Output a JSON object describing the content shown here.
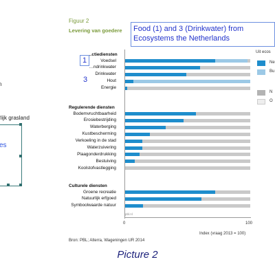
{
  "left_panel": {
    "text_top": "n",
    "text_grasland": "rlijk grasland",
    "text_blue": "es"
  },
  "figure": {
    "label": "Figuur 2",
    "title_start": "Levering van goedere",
    "annotation_text_line1": "Food (1) and 3 (Drinkwater) from",
    "annotation_text_line2": "Ecosystems the Netherlands",
    "marker_1": "1",
    "marker_3": "3",
    "legend_title": "Uit ecos",
    "legend_labels": [
      "Ne",
      "Bu",
      "N",
      "O"
    ],
    "legend_colors": [
      "#1e8dcc",
      "#9cc9e6",
      "#b3b3b3",
      "#eeeeee"
    ],
    "pbl_note": "pbl.nl",
    "axis_title": "Index (vraag 2013 = 100)",
    "tick_0": "0",
    "tick_100": "100",
    "source": "Bron: PBL; Alterra, Wageningen UR 2014",
    "caption": "Picture 2"
  },
  "chart_data": {
    "type": "bar",
    "title": "",
    "xlabel": "Index (vraag 2013 = 100)",
    "xlim": [
      0,
      100
    ],
    "groups": [
      {
        "name": "…ctiediensten",
        "rows": [
          {
            "label": "Voedsel",
            "value": 72,
            "light": 26
          },
          {
            "label": "…ndrinkwater",
            "value": 60,
            "light": 0
          },
          {
            "label": "Drinkwater",
            "value": 49,
            "light": 0
          },
          {
            "label": "Hout",
            "value": 7,
            "light": 93
          },
          {
            "label": "Energie",
            "value": 2,
            "light": 0
          }
        ]
      },
      {
        "name": "Regulerende diensten",
        "rows": [
          {
            "label": "Bodemvruchtbaarheid",
            "value": 57,
            "light": 0
          },
          {
            "label": "Erosiebestrijding",
            "value": 47,
            "light": 0
          },
          {
            "label": "Waterberging",
            "value": 33,
            "light": 0
          },
          {
            "label": "Kustbescherming",
            "value": 20,
            "light": 0
          },
          {
            "label": "Verkoeling in de stad",
            "value": 14,
            "light": 0
          },
          {
            "label": "Waterzuivering",
            "value": 14,
            "light": 0
          },
          {
            "label": "Plaagonderdrukking",
            "value": 12,
            "light": 0
          },
          {
            "label": "Bestuiving",
            "value": 8,
            "light": 0
          },
          {
            "label": "Koolstofvastlegging",
            "value": 0,
            "light": 0
          }
        ]
      },
      {
        "name": "Culturele diensten",
        "rows": [
          {
            "label": "Groene recreatie",
            "value": 72,
            "light": 0
          },
          {
            "label": "Natuurlijk erfgoed",
            "value": 61,
            "light": 0
          },
          {
            "label": "Symboolwaarde natuur",
            "value": 15,
            "light": 0
          }
        ]
      }
    ]
  }
}
